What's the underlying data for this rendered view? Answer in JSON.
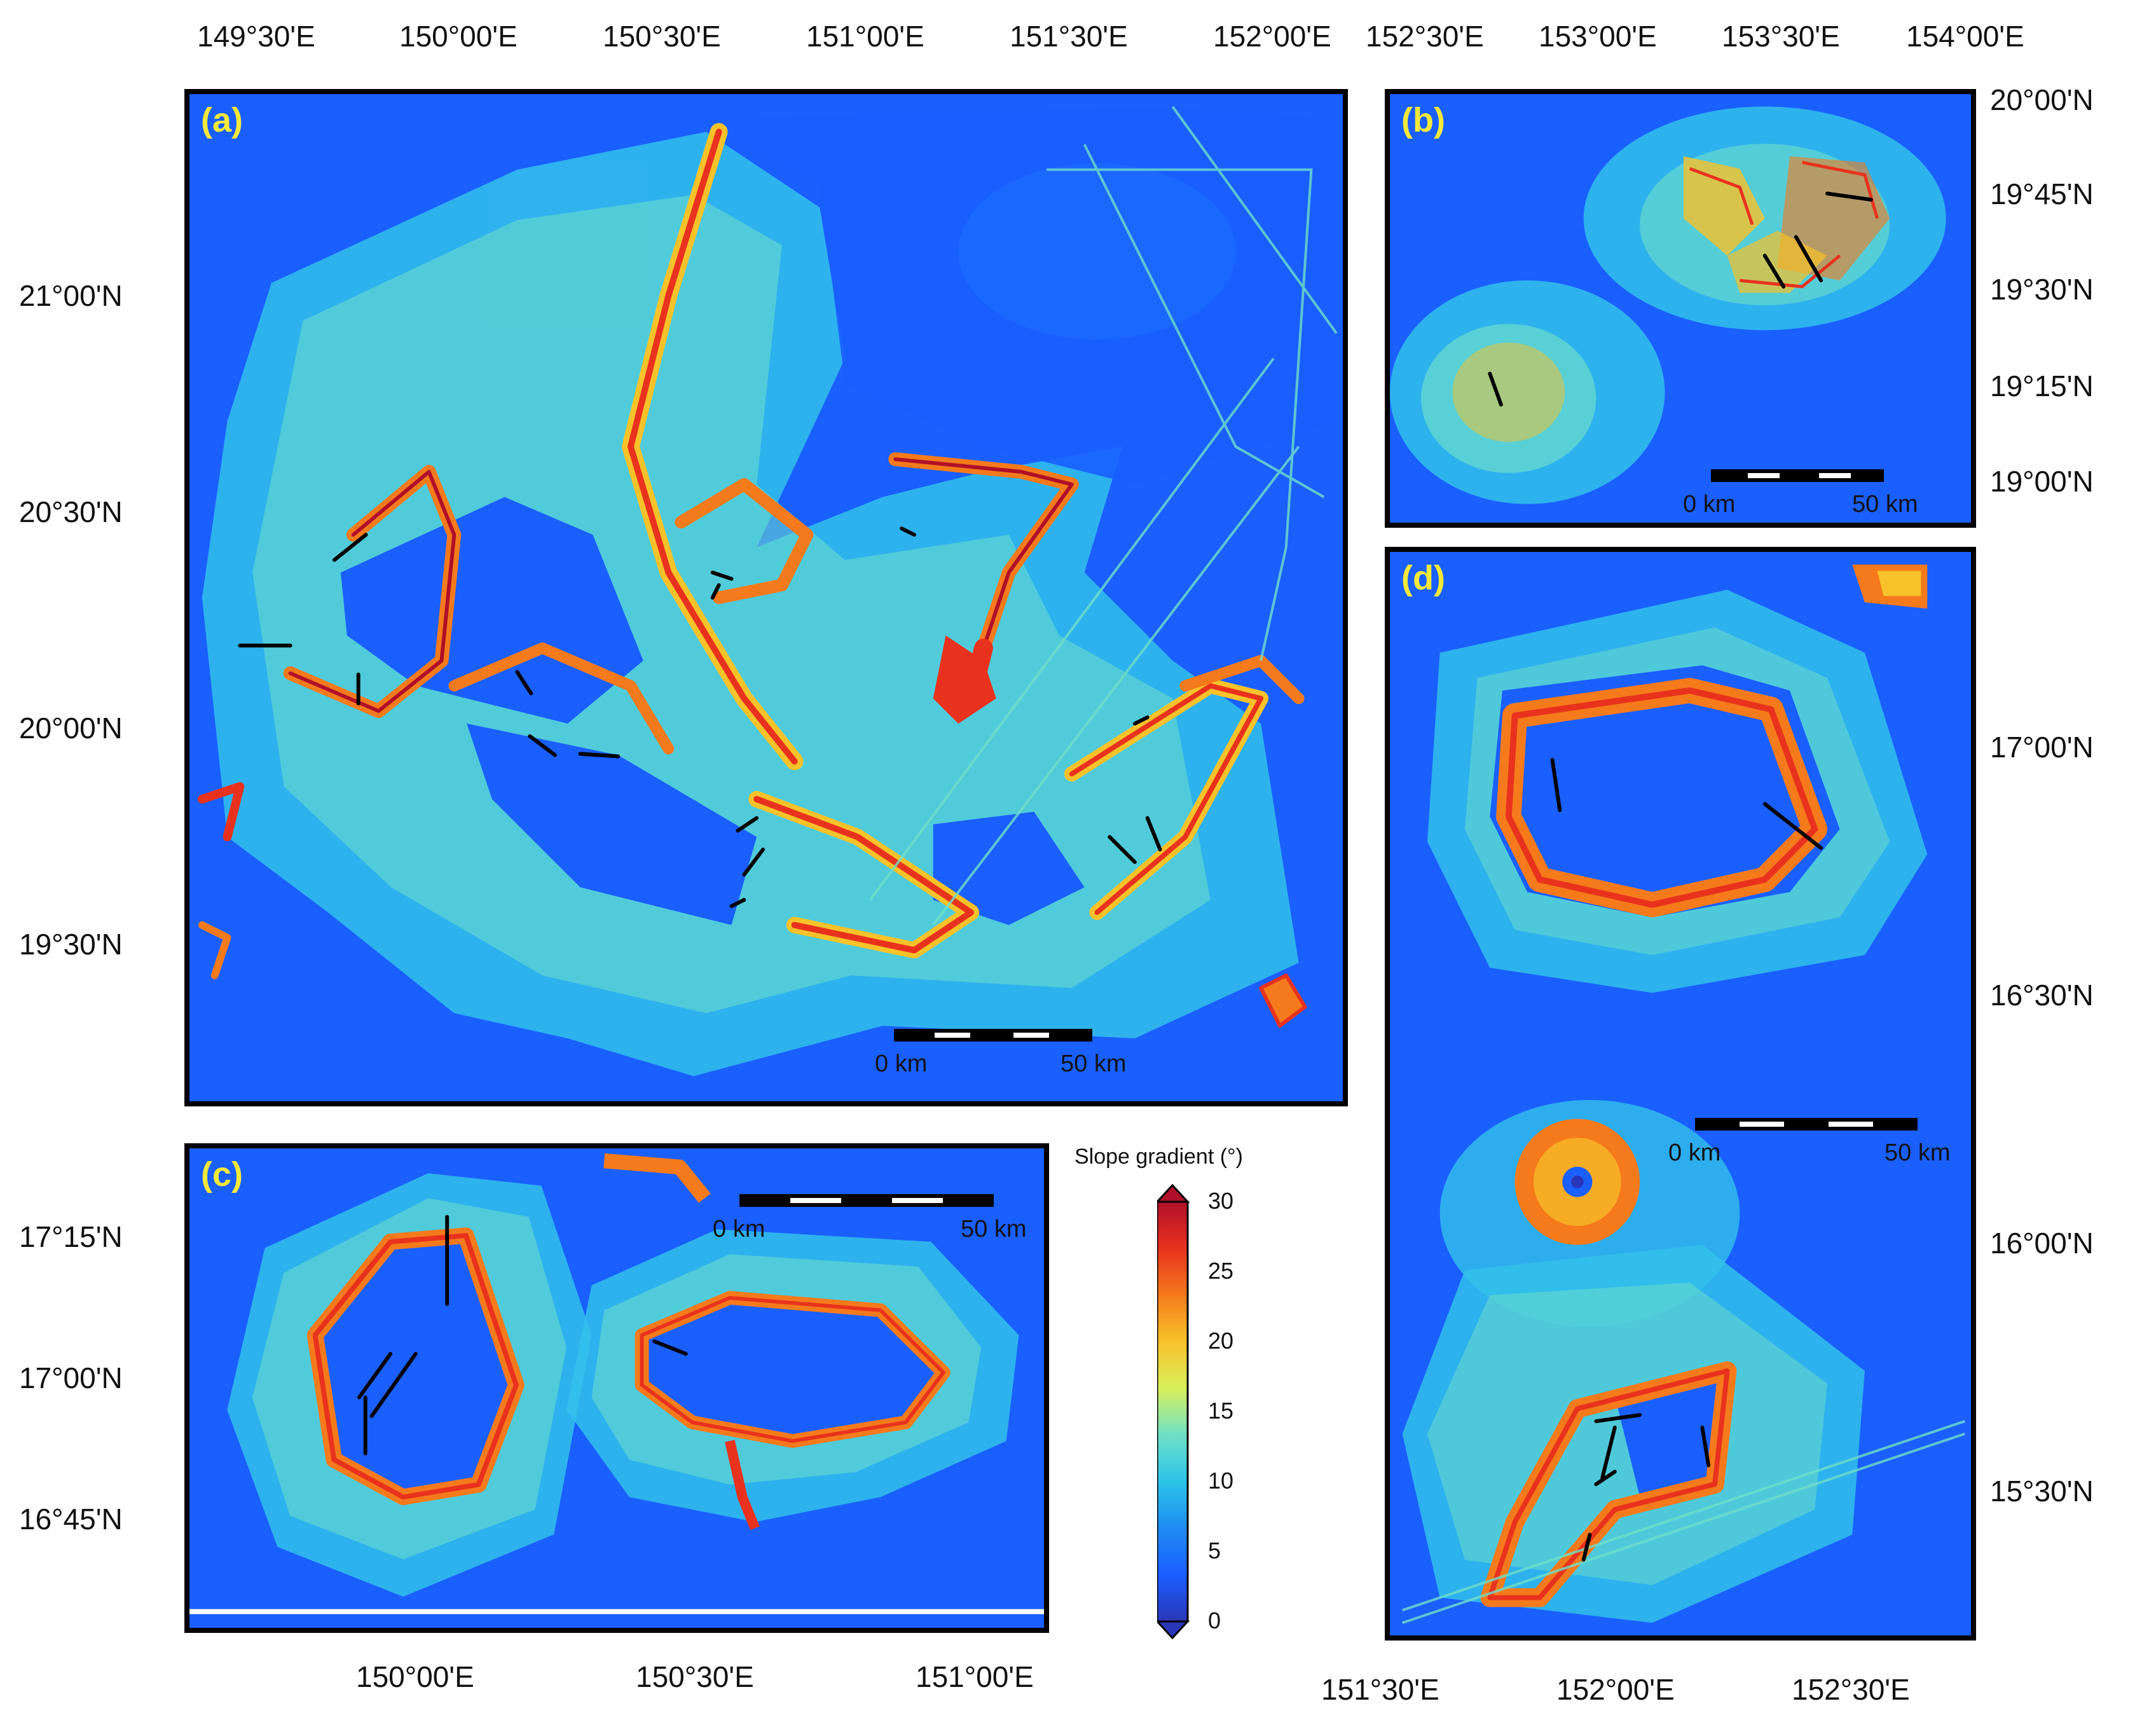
{
  "panels": {
    "a": {
      "label": "(a)",
      "scale": {
        "start": "0 km",
        "end": "50 km"
      }
    },
    "b": {
      "label": "(b)",
      "scale": {
        "start": "0 km",
        "end": "50 km"
      }
    },
    "c": {
      "label": "(c)",
      "scale": {
        "start": "0 km",
        "end": "50 km"
      }
    },
    "d": {
      "label": "(d)",
      "scale": {
        "start": "0 km",
        "end": "50 km"
      }
    }
  },
  "top_lon_labels": [
    "149°30'E",
    "150°00'E",
    "150°30'E",
    "151°00'E",
    "151°30'E",
    "152°00'E",
    "152°30'E",
    "153°00'E",
    "153°30'E",
    "154°00'E"
  ],
  "a_lat_labels": [
    "21°00'N",
    "20°30'N",
    "20°00'N",
    "19°30'N"
  ],
  "b_lat_labels": [
    "20°00'N",
    "19°45'N",
    "19°30'N",
    "19°15'N",
    "19°00'N"
  ],
  "c_lat_labels": [
    "17°15'N",
    "17°00'N",
    "16°45'N"
  ],
  "c_lon_labels": [
    "150°00'E",
    "150°30'E",
    "151°00'E"
  ],
  "d_lat_labels": [
    "17°00'N",
    "16°30'N",
    "16°00'N",
    "15°30'N"
  ],
  "d_lon_labels": [
    "151°30'E",
    "152°00'E",
    "152°30'E"
  ],
  "colorbar": {
    "title": "Slope gradient (°)",
    "ticks": [
      "30",
      "25",
      "20",
      "15",
      "10",
      "5",
      "0"
    ],
    "colors": [
      "#b0102a",
      "#e8321e",
      "#f57a1c",
      "#f7c22a",
      "#d9ef5a",
      "#6fe0c8",
      "#2bc4e8",
      "#1f8cf2",
      "#1a5fff",
      "#2a36b8"
    ]
  }
}
